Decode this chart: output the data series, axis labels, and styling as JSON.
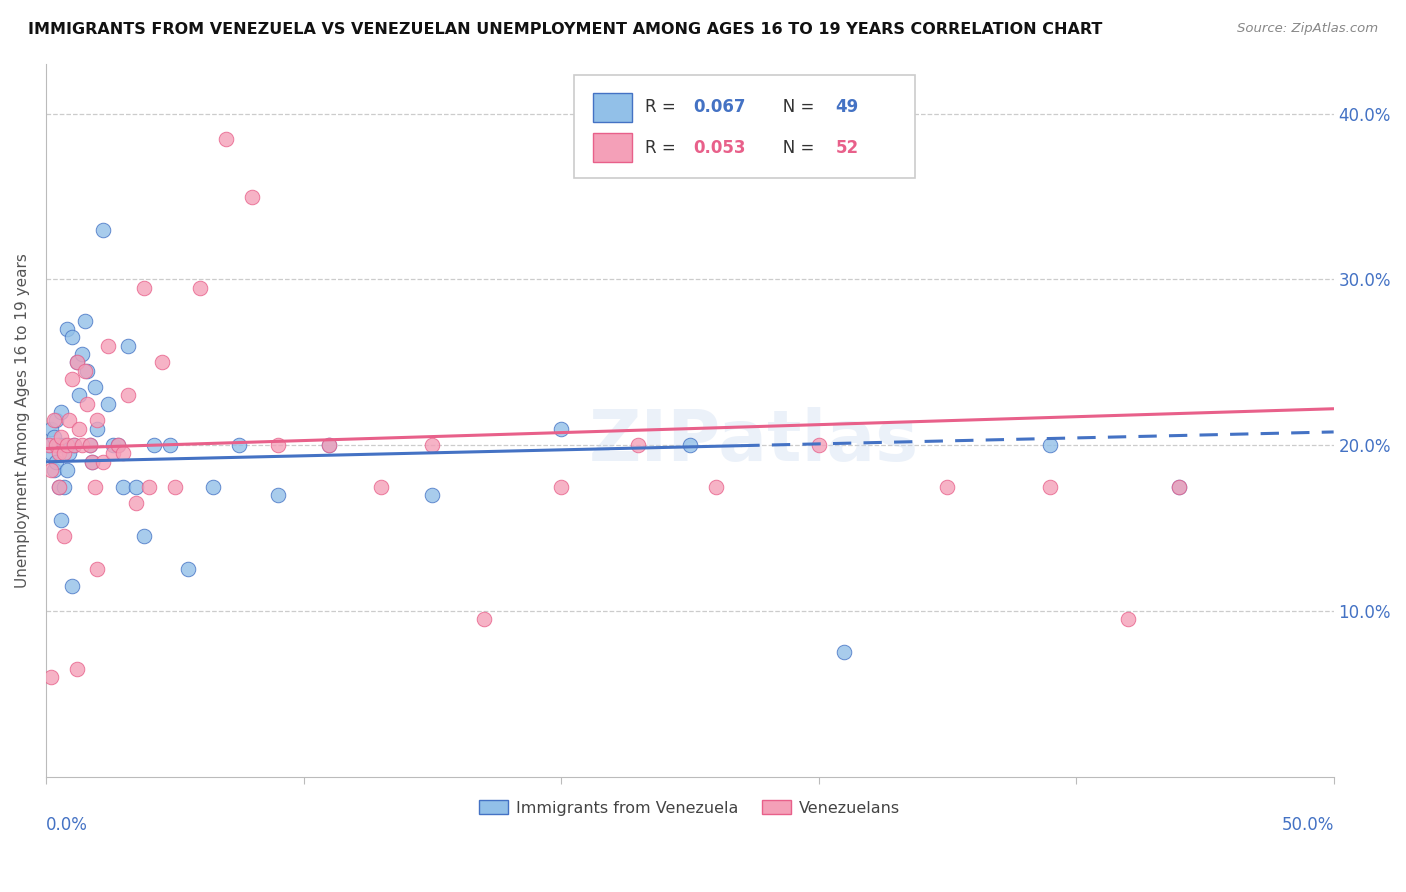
{
  "title": "IMMIGRANTS FROM VENEZUELA VS VENEZUELAN UNEMPLOYMENT AMONG AGES 16 TO 19 YEARS CORRELATION CHART",
  "source": "Source: ZipAtlas.com",
  "ylabel": "Unemployment Among Ages 16 to 19 years",
  "xlim": [
    0.0,
    0.5
  ],
  "ylim": [
    0.0,
    0.43
  ],
  "legend_r1": "0.067",
  "legend_n1": "49",
  "legend_r2": "0.053",
  "legend_n2": "52",
  "color_blue": "#92C0E8",
  "color_pink": "#F4A0B8",
  "trendline_blue": "#4472C4",
  "trendline_pink": "#E8608A",
  "blue_scatter_x": [
    0.001,
    0.002,
    0.002,
    0.003,
    0.003,
    0.004,
    0.004,
    0.005,
    0.005,
    0.006,
    0.006,
    0.007,
    0.007,
    0.008,
    0.008,
    0.009,
    0.01,
    0.01,
    0.011,
    0.012,
    0.013,
    0.014,
    0.015,
    0.016,
    0.017,
    0.018,
    0.019,
    0.02,
    0.022,
    0.024,
    0.026,
    0.028,
    0.03,
    0.032,
    0.035,
    0.038,
    0.042,
    0.048,
    0.055,
    0.065,
    0.075,
    0.09,
    0.11,
    0.15,
    0.2,
    0.25,
    0.31,
    0.39,
    0.44
  ],
  "blue_scatter_y": [
    0.2,
    0.195,
    0.21,
    0.185,
    0.205,
    0.215,
    0.19,
    0.2,
    0.175,
    0.155,
    0.22,
    0.175,
    0.2,
    0.27,
    0.185,
    0.195,
    0.115,
    0.265,
    0.2,
    0.25,
    0.23,
    0.255,
    0.275,
    0.245,
    0.2,
    0.19,
    0.235,
    0.21,
    0.33,
    0.225,
    0.2,
    0.2,
    0.175,
    0.26,
    0.175,
    0.145,
    0.2,
    0.2,
    0.125,
    0.175,
    0.2,
    0.17,
    0.2,
    0.17,
    0.21,
    0.2,
    0.075,
    0.2,
    0.175
  ],
  "pink_scatter_x": [
    0.001,
    0.002,
    0.003,
    0.004,
    0.005,
    0.005,
    0.006,
    0.007,
    0.008,
    0.009,
    0.01,
    0.011,
    0.012,
    0.013,
    0.014,
    0.015,
    0.016,
    0.017,
    0.018,
    0.019,
    0.02,
    0.022,
    0.024,
    0.026,
    0.028,
    0.03,
    0.032,
    0.035,
    0.038,
    0.04,
    0.045,
    0.05,
    0.06,
    0.07,
    0.08,
    0.09,
    0.11,
    0.13,
    0.15,
    0.17,
    0.2,
    0.23,
    0.26,
    0.3,
    0.35,
    0.39,
    0.42,
    0.44,
    0.002,
    0.007,
    0.012,
    0.02
  ],
  "pink_scatter_y": [
    0.2,
    0.185,
    0.215,
    0.2,
    0.195,
    0.175,
    0.205,
    0.195,
    0.2,
    0.215,
    0.24,
    0.2,
    0.25,
    0.21,
    0.2,
    0.245,
    0.225,
    0.2,
    0.19,
    0.175,
    0.215,
    0.19,
    0.26,
    0.195,
    0.2,
    0.195,
    0.23,
    0.165,
    0.295,
    0.175,
    0.25,
    0.175,
    0.295,
    0.385,
    0.35,
    0.2,
    0.2,
    0.175,
    0.2,
    0.095,
    0.175,
    0.2,
    0.175,
    0.2,
    0.175,
    0.175,
    0.095,
    0.175,
    0.06,
    0.145,
    0.065,
    0.125
  ],
  "watermark": "ZIPatlas",
  "bg_color": "#FFFFFF",
  "grid_color": "#CCCCCC",
  "trendline_blue_start_y": 0.19,
  "trendline_blue_end_y": 0.208,
  "trendline_pink_start_y": 0.198,
  "trendline_pink_end_y": 0.222,
  "trendline_blue_dashed_start_x": 0.27,
  "trendline_blue_dashed_end_x": 0.5
}
